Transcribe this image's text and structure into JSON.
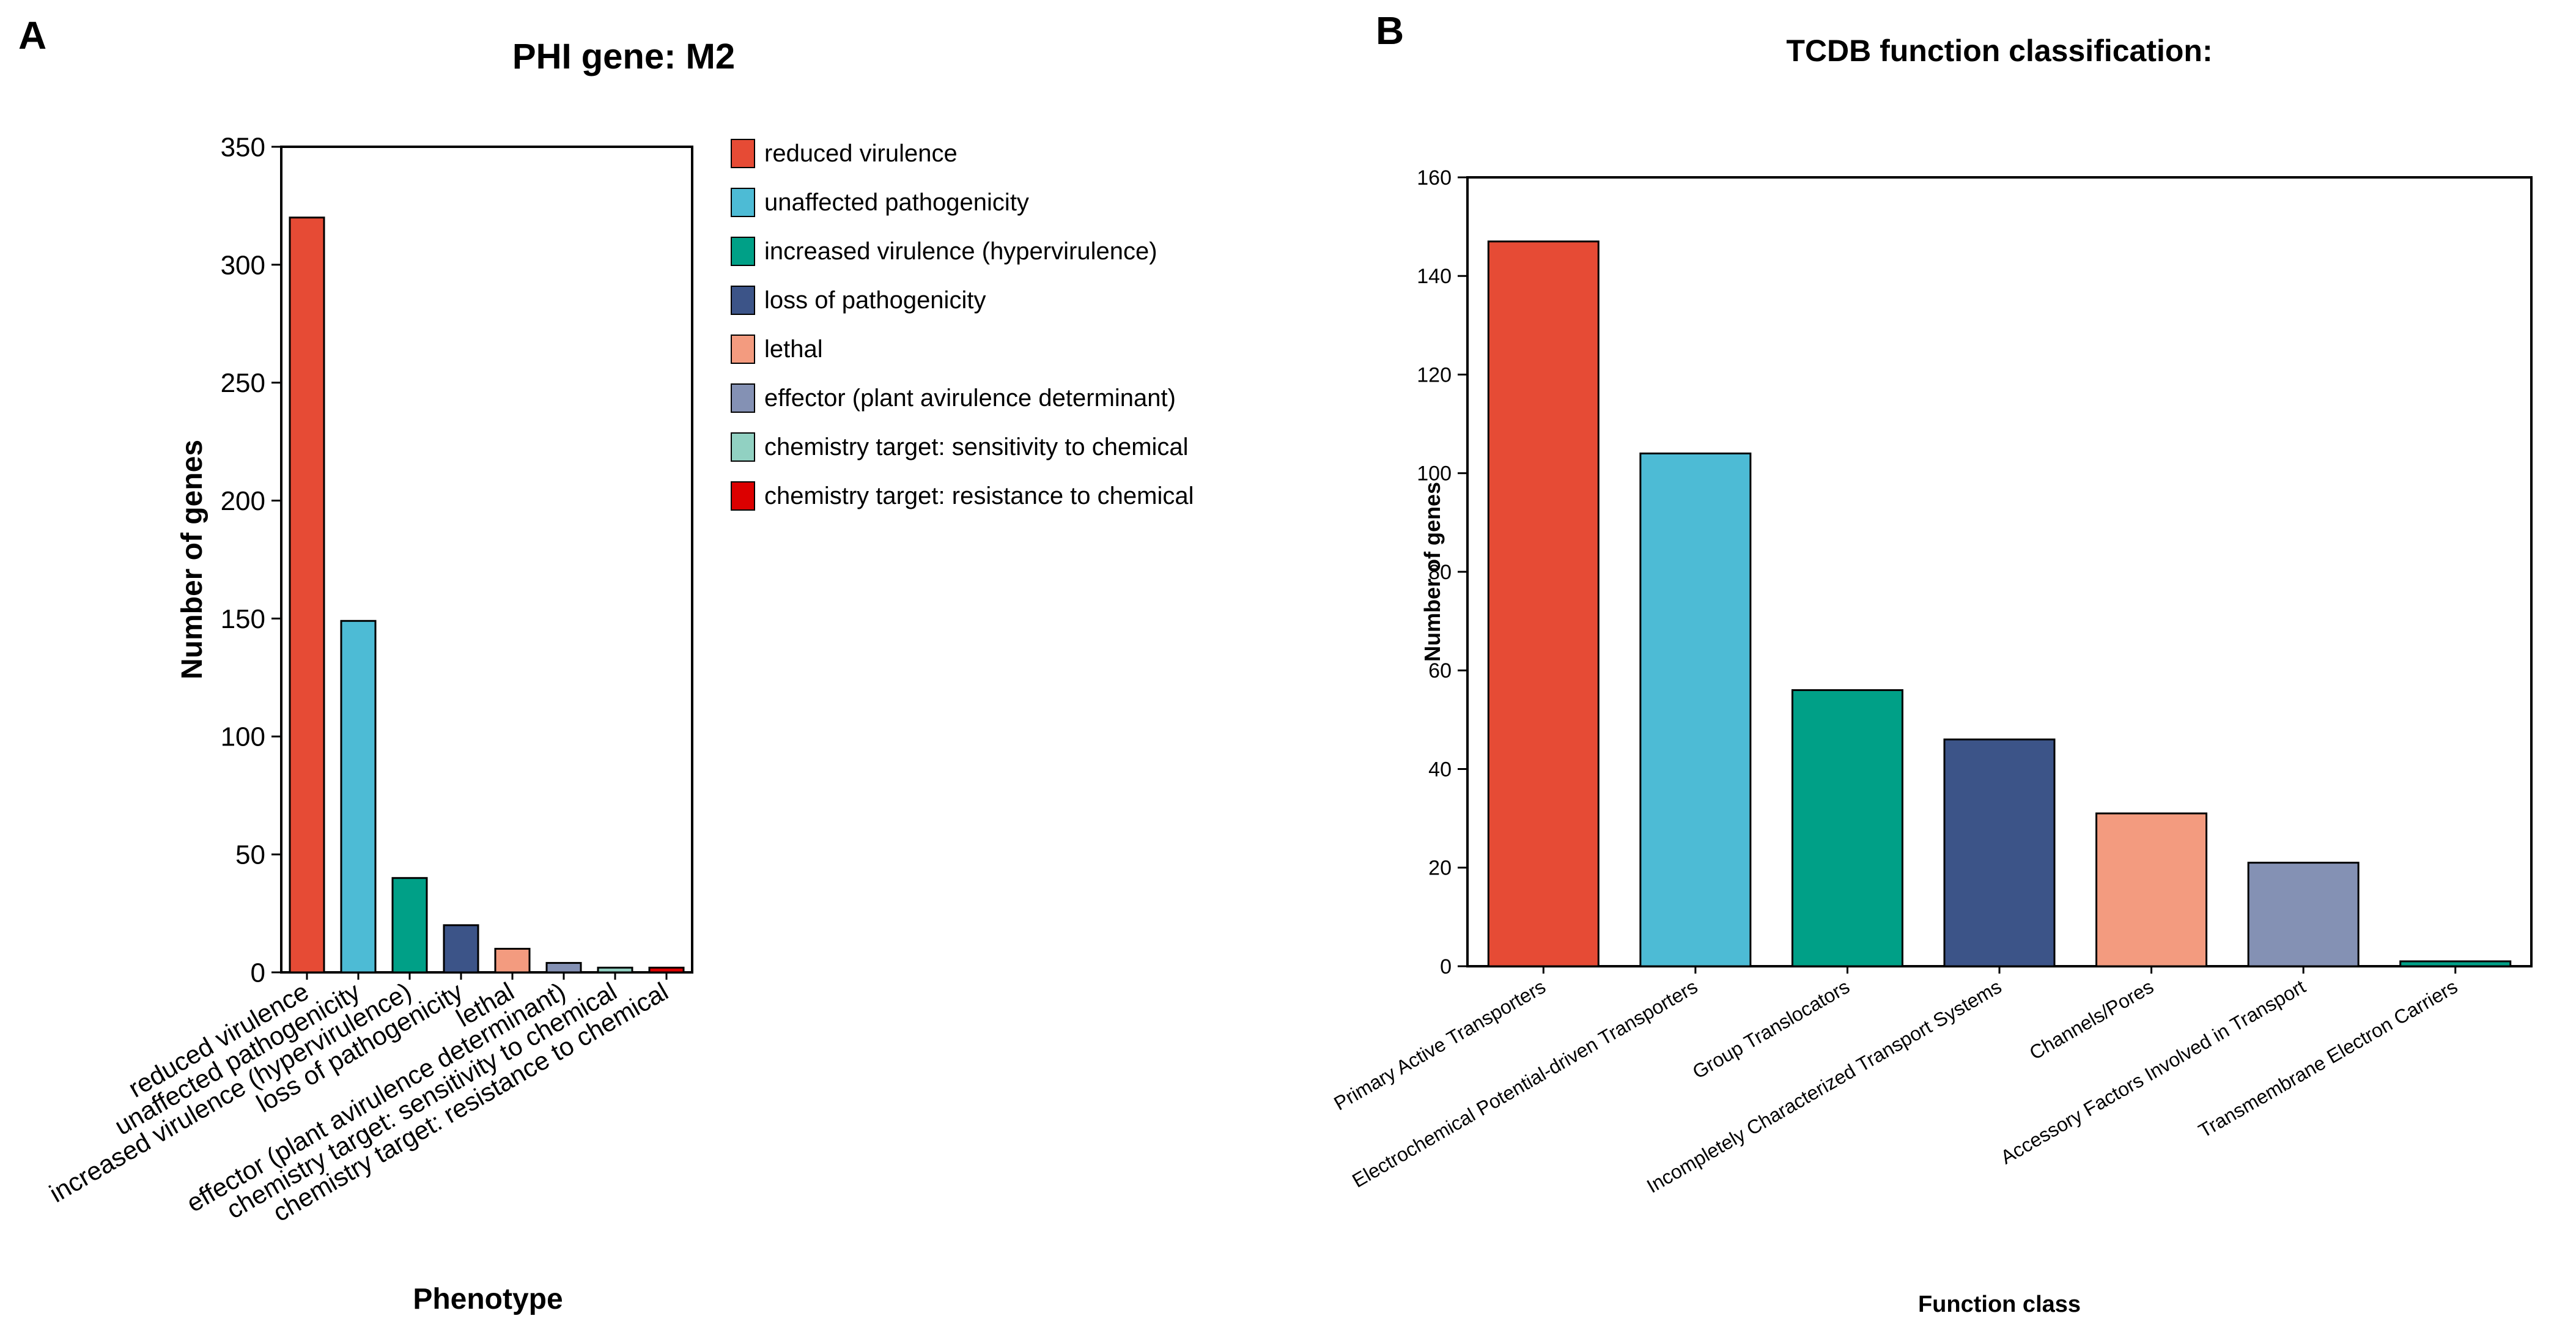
{
  "panel_a_letter": "A",
  "panel_b_letter": "B",
  "colors": {
    "reduced_virulence": "#E64B35",
    "unaffected_pathogenicity": "#4DBBD5",
    "increased_virulence": "#00A087",
    "loss_of_pathogenicity": "#3C5488",
    "lethal": "#F39B7F",
    "effector": "#8491B4",
    "sensitivity": "#91D1C2",
    "resistance": "#DC0000"
  },
  "chart_data": [
    {
      "type": "bar",
      "title": "PHI gene: M2",
      "xlabel": "Phenotype",
      "ylabel": "Number of genes",
      "ylim": [
        0,
        350
      ],
      "yticks": [
        0,
        50,
        100,
        150,
        200,
        250,
        300,
        350
      ],
      "grid": false,
      "legend_position": "right",
      "categories": [
        "reduced virulence",
        "unaffected pathogenicity",
        "increased virulence (hypervirulence)",
        "loss of pathogenicity",
        "lethal",
        "effector (plant avirulence determinant)",
        "chemistry target: sensitivity to chemical",
        "chemistry target: resistance to chemical"
      ],
      "values": [
        320,
        149,
        40,
        20,
        10,
        4,
        2,
        2
      ],
      "colors": [
        "#E64B35",
        "#4DBBD5",
        "#00A087",
        "#3C5488",
        "#F39B7F",
        "#8491B4",
        "#91D1C2",
        "#DC0000"
      ],
      "legend": [
        "reduced virulence",
        "unaffected pathogenicity",
        "increased virulence (hypervirulence)",
        "loss of pathogenicity",
        "lethal",
        "effector (plant avirulence determinant)",
        "chemistry target: sensitivity to chemical",
        "chemistry target: resistance to chemical"
      ]
    },
    {
      "type": "bar",
      "title": "TCDB function classification:",
      "xlabel": "Function class",
      "ylabel": "Number of genes",
      "ylim": [
        0,
        160
      ],
      "yticks": [
        0,
        20,
        40,
        60,
        80,
        100,
        120,
        140,
        160
      ],
      "grid": false,
      "categories": [
        "Primary Active Transporters",
        "Electrochemical Potential-driven Transporters",
        "Group Translocators",
        "Incompletely Characterized Transport Systems",
        "Channels/Pores",
        "Accessory Factors Involved in Transport",
        "Transmembrane Electron Carriers"
      ],
      "values": [
        147,
        104,
        56,
        46,
        31,
        21,
        1
      ],
      "colors": [
        "#E64B35",
        "#4DBBD5",
        "#00A087",
        "#3C5488",
        "#F39B7F",
        "#8491B4",
        "#00A087"
      ]
    }
  ]
}
